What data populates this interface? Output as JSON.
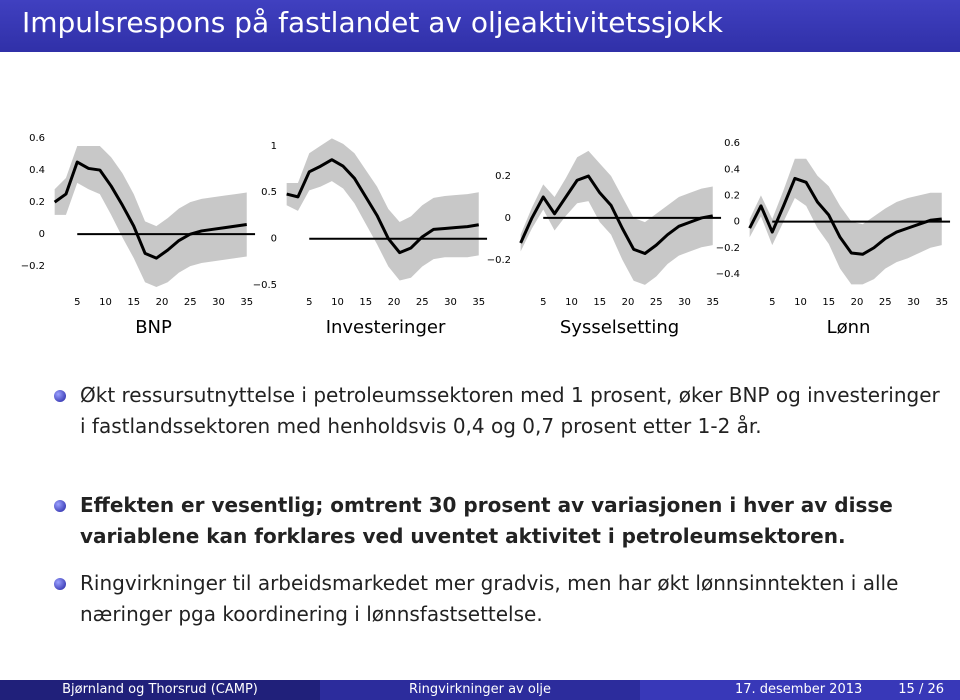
{
  "header": {
    "title": "Impulsrespons på fastlandet av oljeaktivitetssjokk"
  },
  "chart_data": [
    {
      "type": "line",
      "title": "BNP",
      "x": [
        1,
        3,
        5,
        7,
        9,
        11,
        13,
        15,
        17,
        19,
        21,
        23,
        25,
        27,
        29,
        31,
        33,
        35
      ],
      "values": [
        0.2,
        0.25,
        0.45,
        0.41,
        0.4,
        0.3,
        0.18,
        0.05,
        -0.12,
        -0.15,
        -0.1,
        -0.04,
        0.0,
        0.02,
        0.03,
        0.04,
        0.05,
        0.06
      ],
      "upper": [
        0.28,
        0.35,
        0.55,
        0.55,
        0.55,
        0.48,
        0.38,
        0.25,
        0.08,
        0.05,
        0.1,
        0.16,
        0.2,
        0.22,
        0.23,
        0.24,
        0.25,
        0.26
      ],
      "lower": [
        0.12,
        0.12,
        0.32,
        0.28,
        0.25,
        0.12,
        -0.02,
        -0.15,
        -0.3,
        -0.33,
        -0.3,
        -0.24,
        -0.2,
        -0.18,
        -0.17,
        -0.16,
        -0.15,
        -0.14
      ],
      "color": "#000000",
      "band_color": "#c8c8c8",
      "xlim": [
        0,
        37
      ],
      "xticks": [
        5,
        10,
        15,
        20,
        25,
        30,
        35
      ],
      "ylim": [
        -0.33,
        0.65
      ],
      "yticks": [
        0.6,
        0.4,
        0.2,
        0,
        {
          "value": -0.2,
          "label": "−0.2"
        }
      ]
    },
    {
      "type": "line",
      "title": "Investeringer",
      "x": [
        1,
        3,
        5,
        7,
        9,
        11,
        13,
        15,
        17,
        19,
        21,
        23,
        25,
        27,
        29,
        31,
        33,
        35
      ],
      "values": [
        0.48,
        0.45,
        0.72,
        0.78,
        0.85,
        0.78,
        0.65,
        0.45,
        0.25,
        0.0,
        -0.15,
        -0.1,
        0.02,
        0.1,
        0.11,
        0.12,
        0.13,
        0.15
      ],
      "upper": [
        0.6,
        0.6,
        0.92,
        1.0,
        1.08,
        1.02,
        0.92,
        0.74,
        0.56,
        0.32,
        0.18,
        0.24,
        0.36,
        0.44,
        0.46,
        0.47,
        0.48,
        0.5
      ],
      "lower": [
        0.36,
        0.3,
        0.52,
        0.56,
        0.62,
        0.54,
        0.38,
        0.16,
        -0.06,
        -0.3,
        -0.45,
        -0.42,
        -0.3,
        -0.22,
        -0.2,
        -0.2,
        -0.2,
        -0.18
      ],
      "color": "#000000",
      "band_color": "#c8c8c8",
      "xlim": [
        0,
        37
      ],
      "xticks": [
        5,
        10,
        15,
        20,
        25,
        30,
        35
      ],
      "ylim": [
        -0.52,
        1.17
      ],
      "yticks": [
        1,
        0.5,
        0,
        {
          "value": -0.5,
          "label": "−0.5"
        }
      ]
    },
    {
      "type": "line",
      "title": "Sysselsetting",
      "x": [
        1,
        3,
        5,
        7,
        9,
        11,
        13,
        15,
        17,
        19,
        21,
        23,
        25,
        27,
        29,
        31,
        33,
        35
      ],
      "values": [
        -0.12,
        0.0,
        0.1,
        0.02,
        0.1,
        0.18,
        0.2,
        0.12,
        0.06,
        -0.05,
        -0.15,
        -0.17,
        -0.13,
        -0.08,
        -0.04,
        -0.02,
        0.0,
        0.01
      ],
      "upper": [
        -0.08,
        0.05,
        0.16,
        0.1,
        0.19,
        0.29,
        0.32,
        0.26,
        0.2,
        0.1,
        0.0,
        -0.02,
        0.02,
        0.06,
        0.1,
        0.12,
        0.14,
        0.15
      ],
      "lower": [
        -0.16,
        -0.05,
        0.04,
        -0.06,
        0.01,
        0.07,
        0.08,
        -0.02,
        -0.08,
        -0.2,
        -0.3,
        -0.32,
        -0.28,
        -0.22,
        -0.18,
        -0.16,
        -0.14,
        -0.13
      ],
      "color": "#000000",
      "band_color": "#c8c8c8",
      "xlim": [
        0,
        37
      ],
      "xticks": [
        5,
        10,
        15,
        20,
        25,
        30,
        35
      ],
      "ylim": [
        -0.33,
        0.42
      ],
      "yticks": [
        0.2,
        0,
        {
          "value": -0.2,
          "label": "−0.2"
        }
      ]
    },
    {
      "type": "line",
      "title": "Lønn",
      "x": [
        1,
        3,
        5,
        7,
        9,
        11,
        13,
        15,
        17,
        19,
        21,
        23,
        25,
        27,
        29,
        31,
        33,
        35
      ],
      "values": [
        -0.05,
        0.12,
        -0.08,
        0.12,
        0.33,
        0.3,
        0.15,
        0.05,
        -0.12,
        -0.24,
        -0.25,
        -0.2,
        -0.13,
        -0.08,
        -0.05,
        -0.02,
        0.01,
        0.02
      ],
      "upper": [
        0.02,
        0.2,
        0.02,
        0.24,
        0.48,
        0.48,
        0.35,
        0.27,
        0.12,
        0.0,
        -0.02,
        0.04,
        0.1,
        0.15,
        0.18,
        0.2,
        0.22,
        0.22
      ],
      "lower": [
        -0.12,
        0.04,
        -0.18,
        0.0,
        0.18,
        0.12,
        -0.05,
        -0.17,
        -0.36,
        -0.48,
        -0.48,
        -0.44,
        -0.36,
        -0.31,
        -0.28,
        -0.24,
        -0.2,
        -0.18
      ],
      "color": "#000000",
      "band_color": "#c8c8c8",
      "xlim": [
        0,
        37
      ],
      "xticks": [
        5,
        10,
        15,
        20,
        25,
        30,
        35
      ],
      "ylim": [
        -0.5,
        0.7
      ],
      "yticks": [
        0.6,
        0.4,
        0.2,
        0,
        {
          "value": -0.2,
          "label": "−0.2"
        },
        {
          "value": -0.4,
          "label": "−0.4"
        }
      ]
    }
  ],
  "bullets": [
    "Økt ressursutnyttelse i petroleumssektoren med 1 prosent, øker BNP og investeringer i fastlandssektoren med henholdsvis 0,4 og 0,7 prosent etter 1-2 år.",
    "Effekten er vesentlig; omtrent 30 prosent av variasjonen i hver av disse variablene kan forklares ved uventet aktivitet i petroleumsektoren.",
    "Ringvirkninger til arbeidsmarkedet mer gradvis, men har økt lønnsinntekten i alle næringer pga koordinering i lønnsfastsettelse."
  ],
  "footer": {
    "author": "Bjørnland og Thorsrud (CAMP)",
    "title": "Ringvirkninger av olje",
    "date": "17. desember 2013",
    "page": "15 / 26"
  }
}
